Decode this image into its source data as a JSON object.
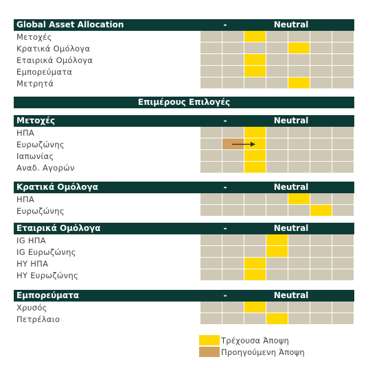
{
  "chart_data": {
    "type": "table",
    "columns": 7,
    "colors": {
      "header_bg": "#0c3b35",
      "empty_cell": "#cfc8b4",
      "current_view": "#ffd800",
      "previous_view": "#d2a15f",
      "arrow": "#2b2b2b"
    },
    "scale_labels": {
      "minus": "-",
      "neutral": "Neutral",
      "plus": "+"
    },
    "divider_title": "Επιμέρους Επιλογές",
    "sections": [
      {
        "title": "Global Asset Allocation",
        "rows": [
          {
            "label": "Μετοχές",
            "current": 3
          },
          {
            "label": "Κρατικά Ομόλογα",
            "current": 5
          },
          {
            "label": "Εταιρικά Ομόλογα",
            "current": 3
          },
          {
            "label": "Εμπορεύματα",
            "current": 3
          },
          {
            "label": "Μετρητά",
            "current": 5
          }
        ]
      },
      {
        "title": "Μετοχές",
        "rows": [
          {
            "label": "ΗΠΑ",
            "current": 3
          },
          {
            "label": "Ευρωζώνης",
            "current": 3,
            "previous": 2
          },
          {
            "label": "Ιαπωνίας",
            "current": 3
          },
          {
            "label": "Αναδ. Αγορών",
            "current": 3
          }
        ]
      },
      {
        "title": "Κρατικά Ομόλογα",
        "rows": [
          {
            "label": "ΗΠΑ",
            "current": 5
          },
          {
            "label": "Ευρωζώνης",
            "current": 6
          }
        ]
      },
      {
        "title": "Εταιρικά Ομόλογα",
        "rows": [
          {
            "label": "IG ΗΠΑ",
            "current": 4
          },
          {
            "label": "IG Ευρωζώνης",
            "current": 4
          },
          {
            "label": "HY ΗΠΑ",
            "current": 3
          },
          {
            "label": "HY Ευρωζώνης",
            "current": 3
          }
        ]
      },
      {
        "title": "Εμπορεύματα",
        "rows": [
          {
            "label": "Χρυσός",
            "current": 3
          },
          {
            "label": "Πετρέλαιο",
            "current": 4
          }
        ]
      }
    ],
    "legend": [
      {
        "label": "Τρέχουσα Άποψη",
        "color_key": "current_view"
      },
      {
        "label": "Προηγούμενη Άποψη",
        "color_key": "previous_view"
      }
    ]
  }
}
